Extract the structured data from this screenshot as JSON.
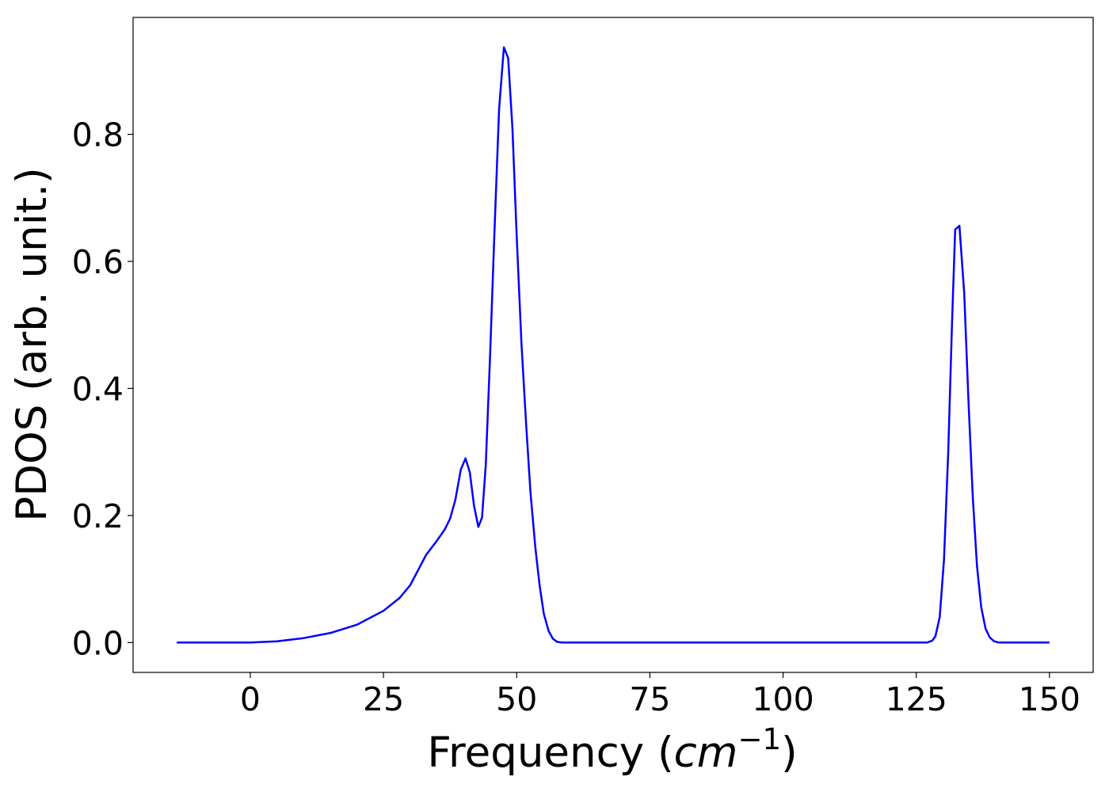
{
  "chart_data": {
    "type": "line",
    "xlabel": [
      "Frequency (",
      "cm",
      "−1",
      ")"
    ],
    "ylabel": "PDOS (arb. unit.)",
    "x": [
      -13.8,
      0,
      5,
      10,
      15,
      20,
      25,
      28,
      30,
      32,
      33,
      35,
      36.5,
      37.5,
      38.5,
      39.5,
      40.4,
      41.2,
      42,
      42.8,
      43.5,
      44.2,
      45,
      45.8,
      46.7,
      47.6,
      48.4,
      49.2,
      50,
      50.9,
      51.8,
      52.6,
      53.5,
      54.3,
      55.1,
      56,
      56.8,
      57.6,
      58.5,
      127,
      128,
      128.6,
      129.4,
      130.2,
      131,
      131.7,
      132.3,
      133.1,
      134,
      134.8,
      135.6,
      136.4,
      137.2,
      138,
      138.8,
      139.6,
      140.5,
      150
    ],
    "series": [
      {
        "color": "#0000ff",
        "values": [
          0,
          0,
          0.002,
          0.007,
          0.015,
          0.028,
          0.05,
          0.07,
          0.09,
          0.122,
          0.138,
          0.16,
          0.178,
          0.195,
          0.225,
          0.272,
          0.29,
          0.268,
          0.215,
          0.182,
          0.197,
          0.28,
          0.45,
          0.64,
          0.84,
          0.937,
          0.92,
          0.81,
          0.64,
          0.47,
          0.34,
          0.235,
          0.15,
          0.09,
          0.045,
          0.018,
          0.006,
          0.001,
          0,
          0,
          0.003,
          0.01,
          0.04,
          0.13,
          0.3,
          0.5,
          0.65,
          0.656,
          0.55,
          0.38,
          0.23,
          0.12,
          0.055,
          0.022,
          0.008,
          0.002,
          0,
          0
        ]
      }
    ],
    "xlim": [
      -22,
      158.2
    ],
    "ylim": [
      -0.047,
      0.984
    ],
    "xticks": [
      0,
      25,
      50,
      75,
      100,
      125,
      150
    ],
    "yticks": [
      {
        "value": 0,
        "label": "0.0"
      },
      0.2,
      0.4,
      0.6,
      0.8
    ],
    "grid": false
  }
}
